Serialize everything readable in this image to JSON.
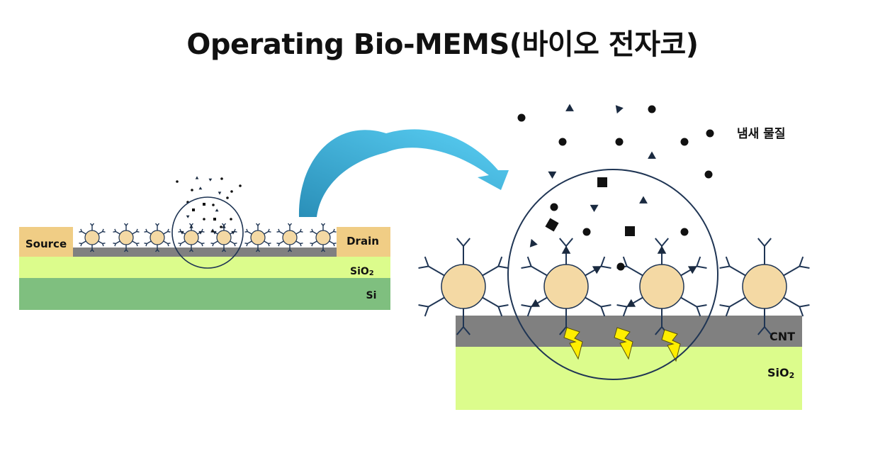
{
  "title": "Operating Bio-MEMS(바이오 전자코)",
  "small_device": {
    "source_label": "Source",
    "drain_label": "Drain",
    "sio2_label": "SiO",
    "sio2_sub": "2",
    "si_label": "Si"
  },
  "zoom_view": {
    "odor_label": "냄새 물질",
    "cnt_label": "CNT",
    "sio2_label": "SiO",
    "sio2_sub": "2"
  },
  "colors": {
    "electrode": "#f0cd85",
    "channel": "#808080",
    "sio2": "#dcfc8c",
    "si": "#7fbf7f",
    "receptor_body": "#f4d9a4",
    "receptor_arm": "#1f3554",
    "arrow": "#3aa6d4",
    "bolt": "#ffee00"
  }
}
